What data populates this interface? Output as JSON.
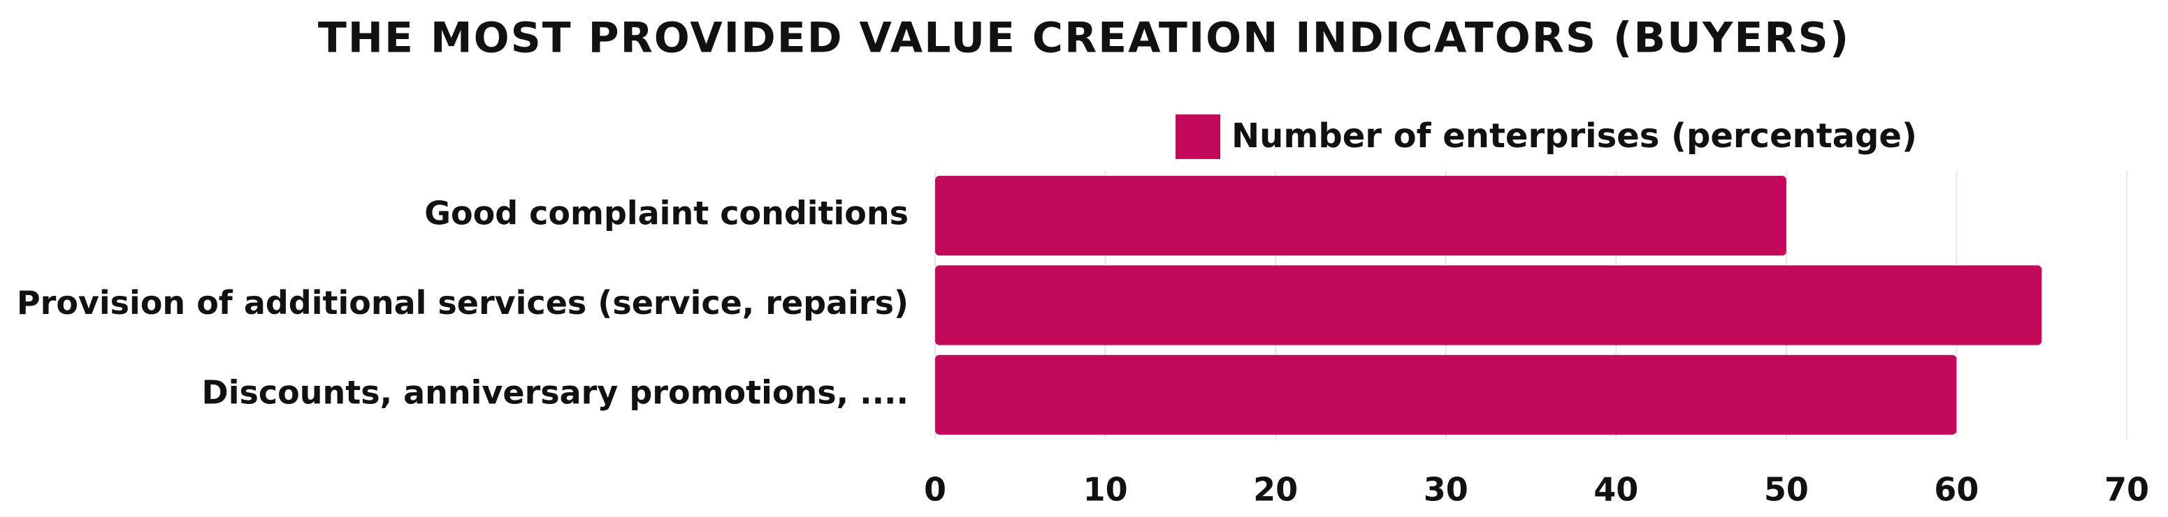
{
  "chart_data": {
    "type": "bar",
    "orientation": "horizontal",
    "title": "THE MOST PROVIDED VALUE CREATION INDICATORS (BUYERS)",
    "categories": [
      "Good complaint conditions",
      "Provision of additional services (service, repairs)",
      "Discounts, anniversary promotions, ...."
    ],
    "series": [
      {
        "name": "Number of enterprises (percentage)",
        "color": "#c2095a",
        "values": [
          50,
          65,
          60
        ]
      }
    ],
    "xlim": [
      0,
      70
    ],
    "xticks": [
      0,
      10,
      20,
      30,
      40,
      50,
      60,
      70
    ],
    "grid": true,
    "legend": "top"
  }
}
